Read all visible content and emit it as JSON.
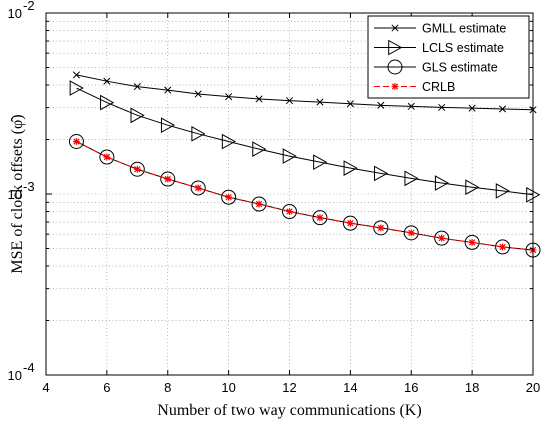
{
  "chart_data": {
    "type": "line",
    "xlabel": "Number of two way communications (K)",
    "ylabel": "MSE of clock offsets (φ̂)",
    "xlim": [
      4,
      20
    ],
    "ylim": [
      0.0001,
      0.01
    ],
    "yscale": "log",
    "grid": true,
    "legend_position": "top-right",
    "x_ticks": [
      "4",
      "6",
      "8",
      "10",
      "12",
      "14",
      "16",
      "18",
      "20"
    ],
    "y_ticks": [
      {
        "base": "10",
        "exp": "-2",
        "value": 0.01
      },
      {
        "base": "10",
        "exp": "-3",
        "value": 0.001
      },
      {
        "base": "10",
        "exp": "-4",
        "value": 0.0001
      }
    ],
    "x": [
      5,
      6,
      7,
      8,
      9,
      10,
      11,
      12,
      13,
      14,
      15,
      16,
      17,
      18,
      19,
      20
    ],
    "series": [
      {
        "name": "GMLL estimate",
        "marker": "x",
        "line": "solid",
        "color": "#000000",
        "values": [
          0.00455,
          0.0042,
          0.00392,
          0.00375,
          0.00357,
          0.00345,
          0.00335,
          0.00328,
          0.00322,
          0.00315,
          0.00309,
          0.00305,
          0.00301,
          0.00298,
          0.00295,
          0.00292
        ]
      },
      {
        "name": "LCLS estimate",
        "marker": "triangle-right",
        "line": "solid",
        "color": "#000000",
        "values": [
          0.00385,
          0.0032,
          0.00272,
          0.0024,
          0.00215,
          0.00195,
          0.00177,
          0.00162,
          0.0015,
          0.00139,
          0.0013,
          0.00122,
          0.00115,
          0.00109,
          0.00104,
          0.00099
        ]
      },
      {
        "name": "GLS estimate",
        "marker": "circle",
        "line": "solid",
        "color": "#000000",
        "values": [
          0.00195,
          0.0016,
          0.00137,
          0.00121,
          0.00108,
          0.00096,
          0.00088,
          0.0008,
          0.00074,
          0.00069,
          0.00065,
          0.00061,
          0.00057,
          0.00054,
          0.00051,
          0.00049
        ]
      },
      {
        "name": "CRLB",
        "marker": "asterisk",
        "line": "dashed",
        "color": "#ff0000",
        "values": [
          0.00195,
          0.0016,
          0.00137,
          0.00121,
          0.00108,
          0.00096,
          0.00088,
          0.0008,
          0.00074,
          0.00069,
          0.00065,
          0.00061,
          0.00057,
          0.00054,
          0.00051,
          0.00049
        ]
      }
    ]
  }
}
